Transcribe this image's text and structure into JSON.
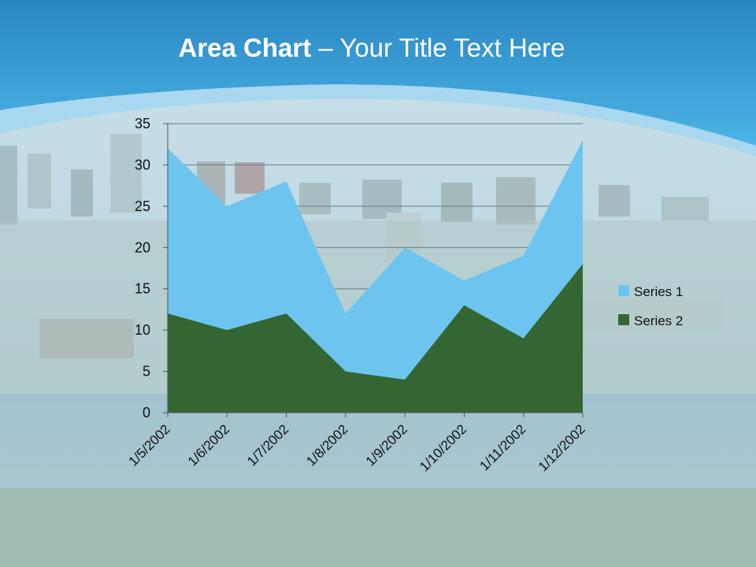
{
  "slide": {
    "title_bold": "Area Chart",
    "title_dash": "–",
    "title_rest": "Your Title Text Here"
  },
  "colors": {
    "header_top": "#2d8fc9",
    "header_bottom": "#4fb6e8",
    "series1": "#6dc5ef",
    "series2": "#336633"
  },
  "chart_data": {
    "type": "area",
    "categories": [
      "1/5/2002",
      "1/6/2002",
      "1/7/2002",
      "1/8/2002",
      "1/9/2002",
      "1/10/2002",
      "1/11/2002",
      "1/12/2002"
    ],
    "series": [
      {
        "name": "Series 1",
        "values": [
          32,
          25,
          28,
          12,
          20,
          16,
          19,
          33
        ]
      },
      {
        "name": "Series 2",
        "values": [
          12,
          10,
          12,
          5,
          4,
          13,
          9,
          18
        ]
      }
    ],
    "ylim": [
      0,
      35
    ],
    "yticks": [
      0,
      5,
      10,
      15,
      20,
      25,
      30,
      35
    ],
    "grid": true,
    "legend": "right"
  }
}
